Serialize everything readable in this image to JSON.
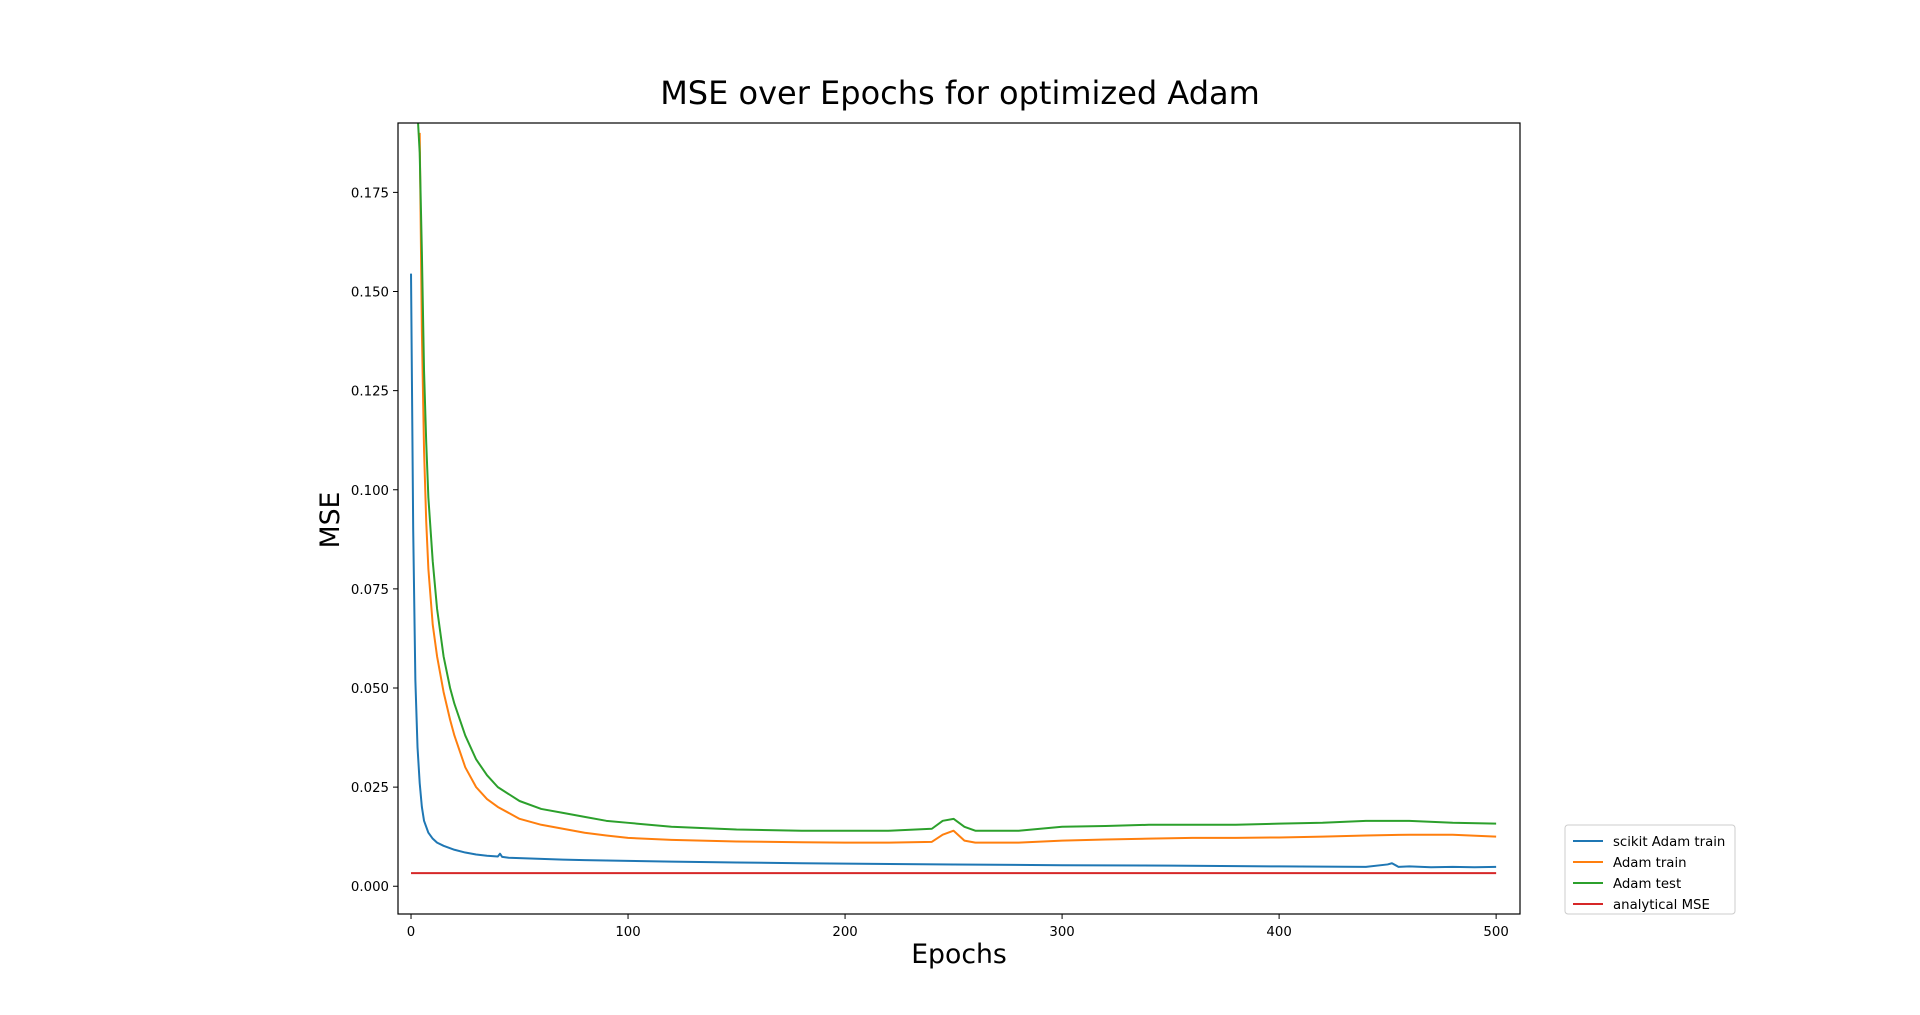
{
  "chart_data": {
    "type": "line",
    "title": "MSE over Epochs for optimized Adam",
    "xlabel": "Epochs",
    "ylabel": "MSE",
    "xlim": [
      -6,
      511
    ],
    "ylim": [
      -0.007,
      0.1925
    ],
    "xticks": [
      0,
      100,
      200,
      300,
      400,
      500
    ],
    "xtick_labels": [
      "0",
      "100",
      "200",
      "300",
      "400",
      "500"
    ],
    "yticks": [
      0.0,
      0.025,
      0.05,
      0.075,
      0.1,
      0.125,
      0.15,
      0.175
    ],
    "ytick_labels": [
      "0.000",
      "0.025",
      "0.050",
      "0.075",
      "0.100",
      "0.125",
      "0.150",
      "0.175"
    ],
    "grid": false,
    "legend_position": "outside-lower-right",
    "series": [
      {
        "name": "scikit Adam train",
        "color": "#1f77b4",
        "x": [
          0,
          1,
          2,
          3,
          4,
          5,
          6,
          8,
          10,
          12,
          15,
          20,
          25,
          30,
          35,
          40,
          41,
          42,
          45,
          50,
          60,
          70,
          80,
          90,
          100,
          120,
          150,
          180,
          200,
          250,
          300,
          350,
          400,
          440,
          450,
          452,
          455,
          460,
          470,
          480,
          490,
          500
        ],
        "y": [
          0.1545,
          0.09,
          0.052,
          0.035,
          0.026,
          0.02,
          0.0165,
          0.0135,
          0.012,
          0.011,
          0.0102,
          0.0092,
          0.0085,
          0.008,
          0.0077,
          0.0075,
          0.0082,
          0.0074,
          0.0072,
          0.0071,
          0.0069,
          0.0067,
          0.0066,
          0.0065,
          0.0064,
          0.0062,
          0.006,
          0.0058,
          0.0057,
          0.0055,
          0.0053,
          0.0052,
          0.005,
          0.0049,
          0.0055,
          0.0058,
          0.0049,
          0.005,
          0.0048,
          0.0049,
          0.0048,
          0.0049
        ]
      },
      {
        "name": "Adam train",
        "color": "#ff7f0e",
        "x": [
          4,
          5,
          6,
          7,
          8,
          10,
          12,
          15,
          18,
          20,
          25,
          30,
          35,
          40,
          50,
          60,
          70,
          80,
          90,
          100,
          120,
          150,
          180,
          200,
          220,
          240,
          245,
          250,
          255,
          260,
          280,
          300,
          320,
          340,
          360,
          380,
          400,
          420,
          440,
          460,
          480,
          500
        ],
        "y": [
          0.19,
          0.14,
          0.11,
          0.092,
          0.08,
          0.066,
          0.058,
          0.049,
          0.042,
          0.038,
          0.03,
          0.025,
          0.022,
          0.02,
          0.017,
          0.0155,
          0.0145,
          0.0135,
          0.0128,
          0.0122,
          0.0117,
          0.0113,
          0.0111,
          0.011,
          0.011,
          0.0112,
          0.013,
          0.014,
          0.0115,
          0.011,
          0.011,
          0.0115,
          0.0118,
          0.012,
          0.0122,
          0.0122,
          0.0123,
          0.0125,
          0.0128,
          0.013,
          0.013,
          0.0125
        ]
      },
      {
        "name": "Adam test",
        "color": "#2ca02c",
        "x": [
          3,
          4,
          5,
          6,
          7,
          8,
          10,
          12,
          15,
          18,
          20,
          25,
          30,
          35,
          40,
          50,
          60,
          70,
          80,
          90,
          100,
          120,
          150,
          180,
          200,
          220,
          240,
          245,
          250,
          255,
          260,
          280,
          300,
          320,
          340,
          360,
          380,
          400,
          420,
          440,
          460,
          480,
          500
        ],
        "y": [
          0.195,
          0.185,
          0.16,
          0.13,
          0.112,
          0.098,
          0.082,
          0.07,
          0.058,
          0.05,
          0.046,
          0.038,
          0.032,
          0.028,
          0.025,
          0.0215,
          0.0195,
          0.0185,
          0.0175,
          0.0165,
          0.016,
          0.015,
          0.0143,
          0.014,
          0.014,
          0.014,
          0.0145,
          0.0165,
          0.017,
          0.015,
          0.014,
          0.014,
          0.015,
          0.0152,
          0.0155,
          0.0155,
          0.0155,
          0.0158,
          0.016,
          0.0165,
          0.0165,
          0.016,
          0.0158
        ]
      },
      {
        "name": "analytical MSE",
        "color": "#d62728",
        "x": [
          0,
          500
        ],
        "y": [
          0.0033,
          0.0033
        ]
      }
    ]
  }
}
